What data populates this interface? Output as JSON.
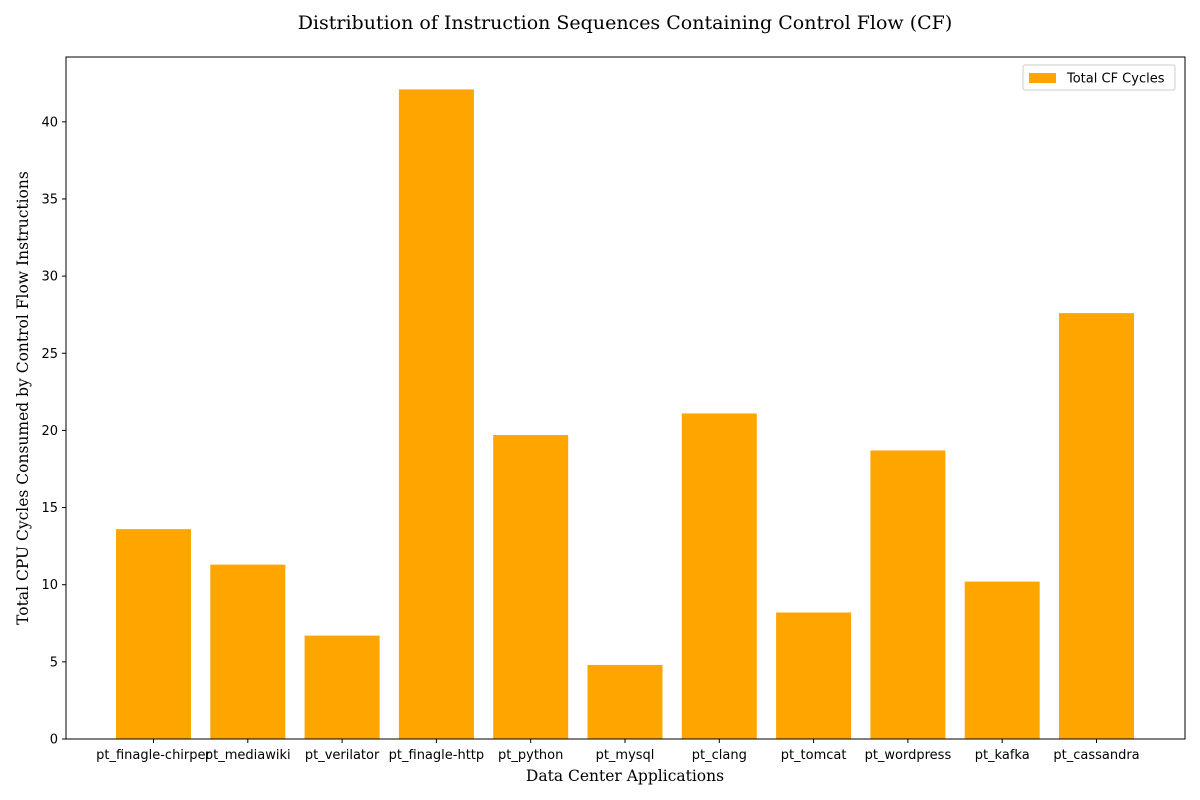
{
  "chart_data": {
    "type": "bar",
    "title": "Distribution of Instruction Sequences Containing Control Flow (CF)",
    "xlabel": "Data Center Applications",
    "ylabel": "Total CPU Cycles Consumed by Control Flow Instructions",
    "categories": [
      "pt_finagle-chirper",
      "pt_mediawiki",
      "pt_verilator",
      "pt_finagle-http",
      "pt_python",
      "pt_mysql",
      "pt_clang",
      "pt_tomcat",
      "pt_wordpress",
      "pt_kafka",
      "pt_cassandra"
    ],
    "series": [
      {
        "name": "Total CF Cycles",
        "color": "#ffa500",
        "values": [
          13.6,
          11.3,
          6.7,
          42.1,
          19.7,
          4.8,
          21.1,
          8.2,
          18.7,
          10.2,
          27.6
        ]
      }
    ],
    "ylim": [
      0,
      44.2
    ],
    "yticks": [
      0,
      5,
      10,
      15,
      20,
      25,
      30,
      35,
      40
    ],
    "grid": false,
    "legend_position": "top-right"
  }
}
